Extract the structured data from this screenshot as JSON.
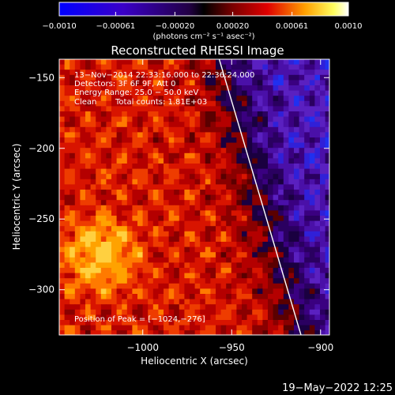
{
  "chart_data": {
    "type": "heatmap",
    "title": "Reconstructed RHESSI Image",
    "xlabel": "Heliocentric X (arcsec)",
    "ylabel": "Heliocentric Y (arcsec)",
    "xlim": [
      -1047,
      -895
    ],
    "ylim": [
      -332,
      -137
    ],
    "xticks": [
      -1000,
      -950,
      -900
    ],
    "xtick_labels": [
      "−1000",
      "−950",
      "−900"
    ],
    "yticks": [
      -150,
      -200,
      -250,
      -300
    ],
    "ytick_labels": [
      "−150",
      "−200",
      "−250",
      "−300"
    ],
    "colorbar": {
      "min": -0.001,
      "max": 0.001,
      "tick_values": [
        -0.001,
        -0.00061,
        -0.0002,
        0.0002,
        0.00061,
        0.001
      ],
      "tick_labels": [
        "−0.0010",
        "−0.00061",
        "−0.00020",
        "0.00020",
        "0.00061",
        "0.0010"
      ],
      "unit_label": "(photons cm⁻² s⁻¹ asec⁻²)"
    },
    "annotations": [
      "13−Nov−2014 22:33:16.000 to 22:36:24.000",
      "Detectors: 3F 6F 9F, Att 0",
      "Energy Range: 25.0 − 50.0 keV",
      "Clean",
      "Total counts: 1.81E+03"
    ],
    "peak_label": "Position of Peak = [−1024,−276]",
    "peak_position": [
      -1024,
      -276
    ],
    "limb_line": [
      [
        -957,
        -137
      ],
      [
        -911,
        -332
      ]
    ],
    "footer_timestamp": "19−May−2022 12:25"
  }
}
